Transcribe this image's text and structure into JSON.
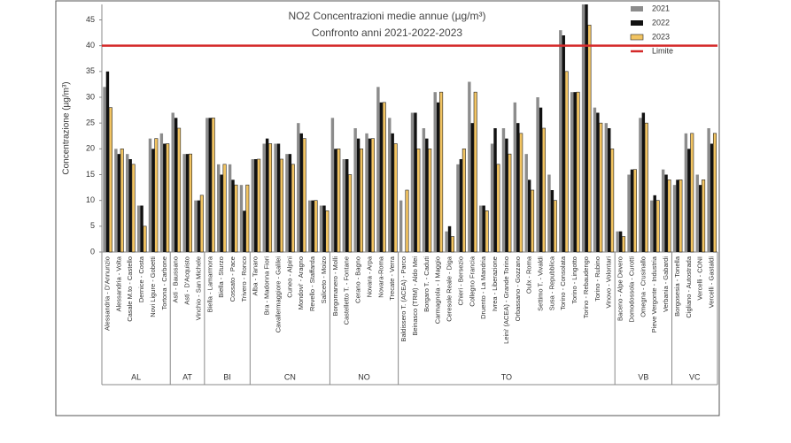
{
  "chart_data": {
    "type": "bar",
    "title": "NO2 Concentrazioni medie annue (µg/m³)",
    "subtitle": "Confronto anni 2021-2022-2023",
    "y_label": "Concentrazione (µg/m³)",
    "ylim": [
      0,
      48
    ],
    "yticks": [
      0,
      5,
      10,
      15,
      20,
      25,
      30,
      35,
      40,
      45
    ],
    "grid": false,
    "legend": "top-right",
    "groups": [
      {
        "label": "AL",
        "stations": [
          "Alessandria - D'Annunzio",
          "Alessandria - Volta",
          "Casale M.to - Castello",
          "Dernice - Costa",
          "Novi Ligure - Gobetti",
          "Tortona - Carbone"
        ]
      },
      {
        "label": "AT",
        "stations": [
          "Asti - Baussano",
          "Asti - D'Acquisto",
          "Vinchio - San Michele"
        ]
      },
      {
        "label": "BI",
        "stations": [
          "Biella - Lamarmora",
          "Biella - Sturzo",
          "Cossato - Pace",
          "Trivero - Ronco"
        ]
      },
      {
        "label": "CN",
        "stations": [
          "Alba - Tanaro",
          "Bra - Madonna Fiori",
          "Cavallermaggiore - Galilei",
          "Cuneo - Alpini",
          "Mondovi' - Aragno",
          "Revello - Staffarda",
          "Saliceto - Moizo"
        ]
      },
      {
        "label": "NO",
        "stations": [
          "Borgomanero - Molli",
          "Castelletto T. - Fontane",
          "Cerano - Bagno",
          "Novara - Arpa",
          "Novara-Roma",
          "Trecate - Verra"
        ]
      },
      {
        "label": "TO",
        "stations": [
          "Baldissero T. (ACEA) - Parco",
          "Beinasco (TRM) - Aldo Mei",
          "Borgaro T. - Caduti",
          "Carmagnola - I Maggio",
          "Ceresole Reale - Diga",
          "Chieri - Bersezio",
          "Collegno Francia",
          "Druento - La Mandria",
          "Ivrea - Liberazione",
          "Leini' (ACEA) - Grande Torino",
          "Orbassano - Gozzano",
          "Oulx - Roma",
          "Settimo T. - Vivaldi",
          "Susa - Repubblica",
          "Torino - Consolata",
          "Torino - Lingotto",
          "Torino - Rebaudengo",
          "Torino - Rubino",
          "Vinovo - Volontari"
        ]
      },
      {
        "label": "VB",
        "stations": [
          "Baceno - Alpe Devero",
          "Domodossola - Curotti",
          "Omegna - Crusinallo",
          "Pieve Vergonte - Industria",
          "Verbania - Gabardi"
        ]
      },
      {
        "label": "VC",
        "stations": [
          "Borgosesia - Tonella",
          "Cigliano - Autostrada",
          "Vercelli - CONI",
          "Vercelli - Gastaldi"
        ]
      }
    ],
    "series": [
      {
        "name": "2021",
        "color": "#8c8c8c",
        "values": [
          32,
          20,
          19,
          9,
          22,
          23,
          27,
          19,
          10,
          26,
          17,
          17,
          13,
          18,
          21,
          21,
          19,
          25,
          10,
          9,
          26,
          18,
          24,
          23,
          32,
          26,
          10,
          27,
          24,
          31,
          4,
          17,
          33,
          9,
          21,
          24,
          29,
          19,
          30,
          15,
          43,
          31,
          48,
          28,
          25,
          4,
          15,
          26,
          10,
          16,
          13,
          23,
          15,
          24
        ]
      },
      {
        "name": "2022",
        "color": "#111111",
        "values": [
          35,
          19,
          18,
          9,
          20,
          21,
          26,
          19,
          10,
          26,
          15,
          14,
          8,
          18,
          22,
          21,
          19,
          23,
          10,
          9,
          20,
          18,
          22,
          22,
          29,
          23,
          null,
          27,
          22,
          29,
          5,
          18,
          25,
          9,
          24,
          22,
          25,
          14,
          28,
          12,
          42,
          31,
          48,
          27,
          24,
          4,
          16,
          27,
          11,
          15,
          14,
          20,
          13,
          21
        ]
      },
      {
        "name": "2023",
        "color": "#f2c462",
        "values": [
          28,
          20,
          17,
          5,
          22,
          21,
          24,
          19,
          11,
          26,
          17,
          13,
          13,
          18,
          21,
          18,
          17,
          22,
          10,
          8,
          20,
          15,
          20,
          22,
          29,
          21,
          12,
          20,
          20,
          31,
          3,
          20,
          31,
          8,
          17,
          19,
          23,
          12,
          24,
          10,
          35,
          31,
          44,
          25,
          20,
          3,
          16,
          25,
          10,
          14,
          14,
          23,
          14,
          23
        ]
      }
    ],
    "reference_lines": [
      {
        "name": "Limite",
        "value": 40,
        "color": "#d42a2a"
      }
    ]
  }
}
